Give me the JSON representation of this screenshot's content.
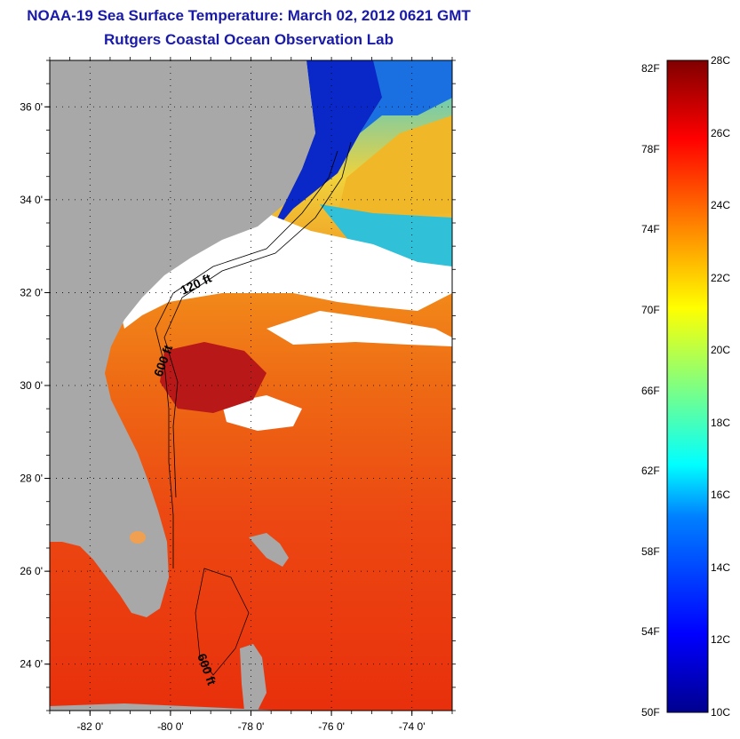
{
  "title": "NOAA-19 Sea Surface Temperature:  March 02, 2012 0621 GMT",
  "subtitle": "Rutgers Coastal Ocean Observation Lab",
  "map": {
    "lon_range": [
      -83,
      -73
    ],
    "lat_range": [
      23,
      37
    ],
    "lon_ticks": [
      "-82 0'",
      "-80 0'",
      "-78 0'",
      "-76 0'",
      "-74 0'"
    ],
    "lat_ticks": [
      "36 0'",
      "34 0'",
      "32 0'",
      "30 0'",
      "28 0'",
      "26 0'",
      "24 0'"
    ],
    "contour_labels": [
      "120 ft",
      "600 ft",
      "600 ft"
    ],
    "colors": {
      "land": "#a8a8a8",
      "cloud": "#ffffff",
      "warm": "#e8300c",
      "cold": "#0a28c8"
    }
  },
  "colorbar": {
    "min_c": 10,
    "max_c": 28,
    "celsius_labels": [
      "28C",
      "26C",
      "24C",
      "22C",
      "20C",
      "18C",
      "16C",
      "14C",
      "12C",
      "10C"
    ],
    "fahrenheit_labels": [
      "82F",
      "78F",
      "74F",
      "70F",
      "66F",
      "62F",
      "58F",
      "54F",
      "50F"
    ]
  }
}
